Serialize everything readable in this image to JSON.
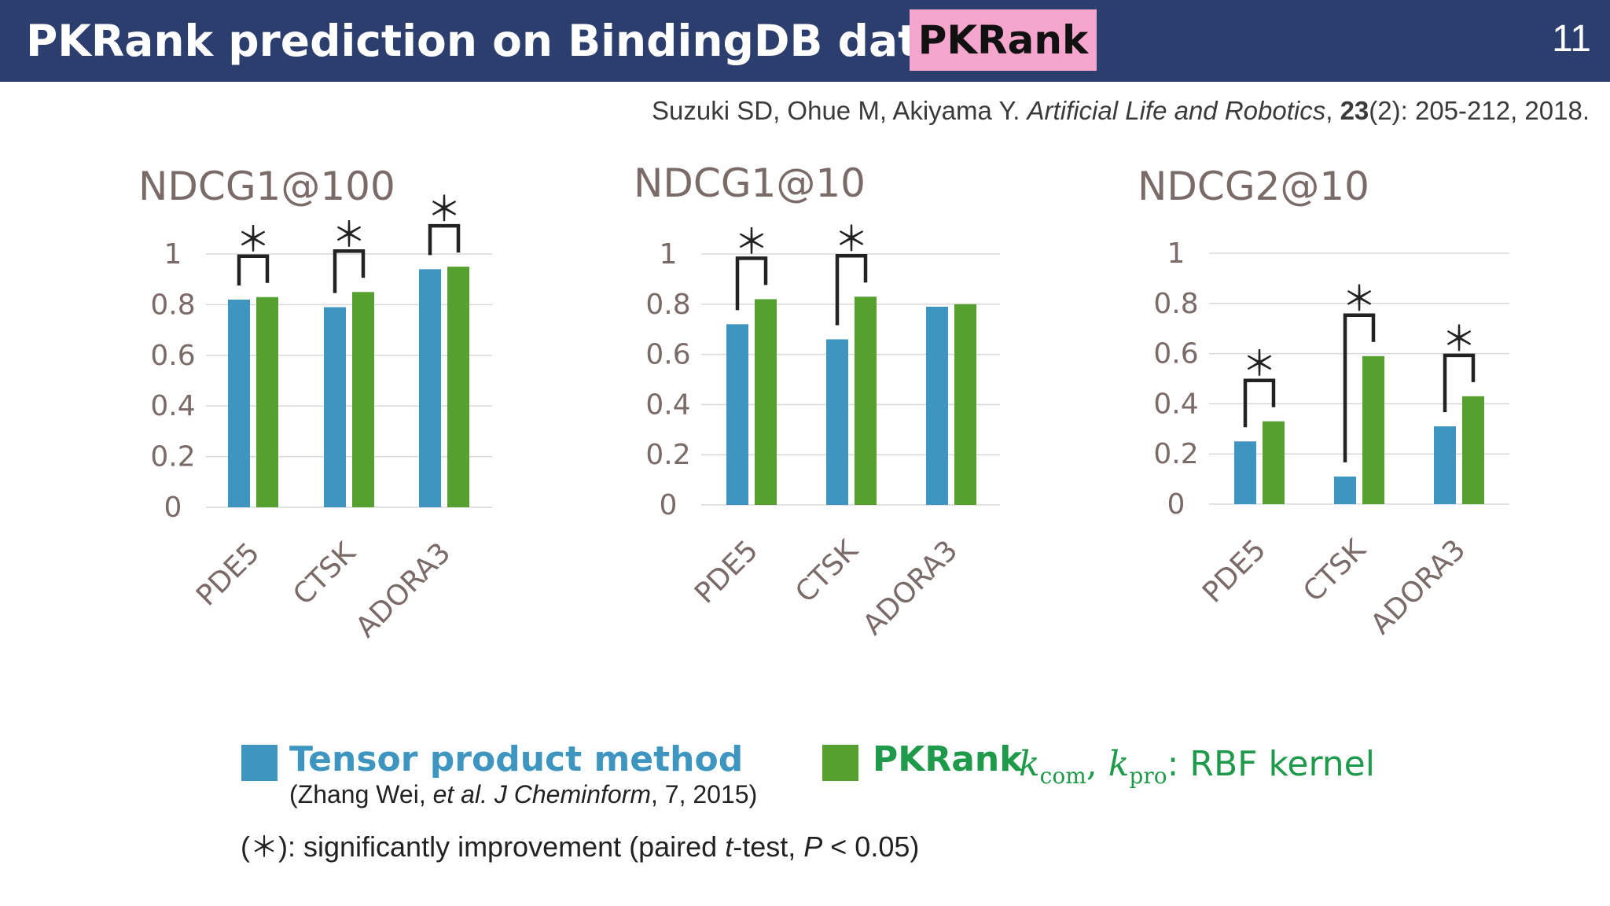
{
  "header": {
    "title": "PKRank prediction on BindingDB data",
    "badge": "PKRank",
    "page_number": "11"
  },
  "citation": {
    "authors": "Suzuki SD, Ohue M, Akiyama Y. ",
    "journal": "Artificial Life and Robotics",
    "sep": ", ",
    "volume": "23",
    "rest": "(2): 205-212, 2018."
  },
  "colors": {
    "tensor": "#3d95c0",
    "pkrank": "#55a02f",
    "header_bg": "#2c3e6e",
    "badge_bg": "#f4a6cc",
    "axis_text": "#7a6a68",
    "kernel_text": "#1e9a4a"
  },
  "chart_data": [
    {
      "type": "bar",
      "title": "NDCG1@100",
      "categories": [
        "PDE5",
        "CTSK",
        "ADORA3"
      ],
      "ylim": [
        0,
        1
      ],
      "yticks": [
        "0",
        "0.2",
        "0.4",
        "0.6",
        "0.8",
        "1"
      ],
      "series": [
        {
          "name": "Tensor product method",
          "values": [
            0.82,
            0.79,
            0.94
          ]
        },
        {
          "name": "PKRank",
          "values": [
            0.83,
            0.85,
            0.95
          ]
        }
      ],
      "significant": [
        true,
        true,
        true
      ],
      "sig_symbol": "＊",
      "grid": true
    },
    {
      "type": "bar",
      "title": "NDCG1@10",
      "categories": [
        "PDE5",
        "CTSK",
        "ADORA3"
      ],
      "ylim": [
        0,
        1
      ],
      "yticks": [
        "0",
        "0.2",
        "0.4",
        "0.6",
        "0.8",
        "1"
      ],
      "series": [
        {
          "name": "Tensor product method",
          "values": [
            0.72,
            0.66,
            0.79
          ]
        },
        {
          "name": "PKRank",
          "values": [
            0.82,
            0.83,
            0.8
          ]
        }
      ],
      "significant": [
        true,
        true,
        false
      ],
      "sig_symbol": "＊",
      "grid": true
    },
    {
      "type": "bar",
      "title": "NDCG2@10",
      "categories": [
        "PDE5",
        "CTSK",
        "ADORA3"
      ],
      "ylim": [
        0,
        1
      ],
      "yticks": [
        "0",
        "0.2",
        "0.4",
        "0.6",
        "0.8",
        "1"
      ],
      "series": [
        {
          "name": "Tensor product method",
          "values": [
            0.25,
            0.11,
            0.31
          ]
        },
        {
          "name": "PKRank",
          "values": [
            0.33,
            0.59,
            0.43
          ]
        }
      ],
      "significant": [
        true,
        true,
        true
      ],
      "sig_symbol": "＊",
      "grid": true
    }
  ],
  "legend": {
    "tensor_label": "Tensor product method",
    "tensor_ref_pre": "(Zhang Wei, ",
    "tensor_ref_etal": "et al. J Cheminform",
    "tensor_ref_post": ", 7, 2015)",
    "pkrank_label": "PKRank",
    "kernel_k": "k",
    "kernel_com": "com",
    "kernel_sep": ", ",
    "kernel_pro": "pro",
    "kernel_rest": ": RBF kernel"
  },
  "footnote": {
    "pre": "(＊): significantly improvement (paired ",
    "t": "t",
    "mid": "-test, ",
    "p": "P",
    "post": " < 0.05)"
  }
}
